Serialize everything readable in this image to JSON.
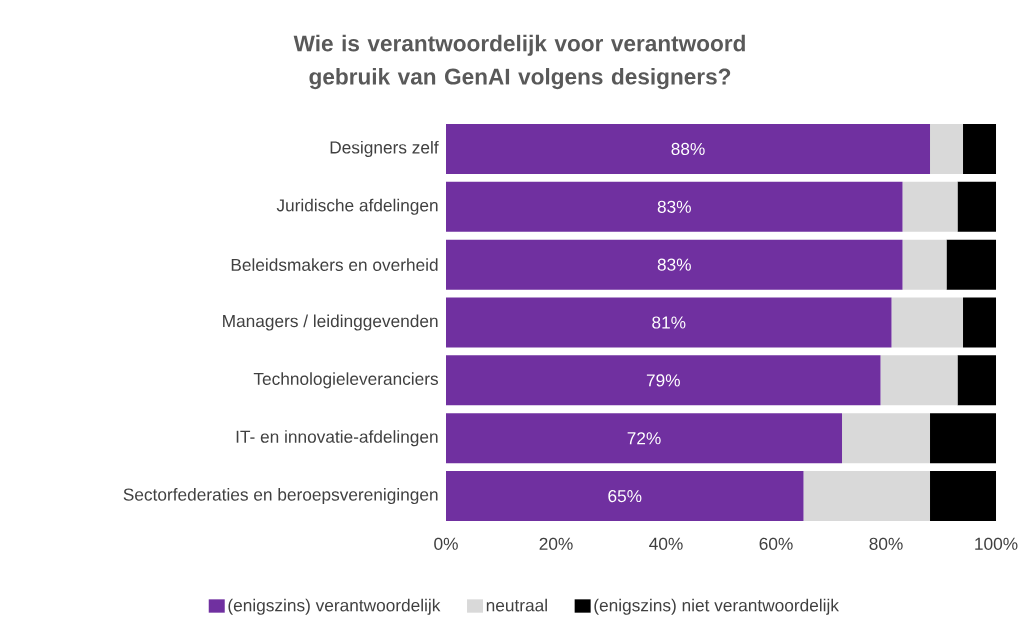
{
  "chart_data": {
    "type": "bar",
    "orientation": "horizontal",
    "stacked": true,
    "title": "Wie is verantwoordelijk voor verantwoord gebruik van GenAI volgens designers?",
    "categories": [
      "Designers zelf",
      "Juridische afdelingen",
      "Beleidsmakers en overheid",
      "Managers / leidinggevenden",
      "Technologieleveranciers",
      "IT- en innovatie-afdelingen",
      "Sectorfederaties en beroepsverenigingen"
    ],
    "series": [
      {
        "name": "(enigszins) verantwoordelijk",
        "color": "#7030a0",
        "values": [
          88,
          83,
          83,
          81,
          79,
          72,
          65
        ],
        "value_labels": [
          "88%",
          "83%",
          "83%",
          "81%",
          "79%",
          "72%",
          "65%"
        ]
      },
      {
        "name": "neutraal",
        "color": "#d9d9d9",
        "values": [
          6,
          10,
          8,
          13,
          14,
          16,
          23
        ]
      },
      {
        "name": "(enigszins) niet verantwoordelijk",
        "color": "#000000",
        "values": [
          6,
          7,
          9,
          6,
          7,
          12,
          12
        ]
      }
    ],
    "xlim": [
      0,
      100
    ],
    "xticks": [
      {
        "value": 0,
        "label": "0%"
      },
      {
        "value": 20,
        "label": "20%"
      },
      {
        "value": 40,
        "label": "40%"
      },
      {
        "value": 60,
        "label": "60%"
      },
      {
        "value": 80,
        "label": "80%"
      },
      {
        "value": 100,
        "label": "100%"
      }
    ],
    "legend": "bottom"
  }
}
